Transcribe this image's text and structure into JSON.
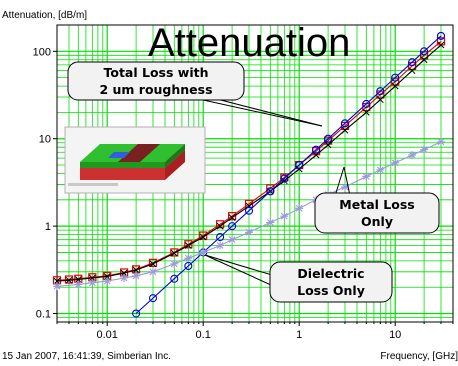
{
  "chart_data": {
    "type": "line",
    "title": "Attenuation",
    "ylabel": "Attenuation, [dB/m]",
    "xlabel": "Frequency, [GHz]",
    "footer": "15 Jan 2007, 16:41:39, Simberian Inc.",
    "x_scale": "log",
    "y_scale": "log",
    "xlim": [
      0.003,
      40
    ],
    "ylim": [
      0.08,
      200
    ],
    "x_ticks": [
      {
        "v": 0.01,
        "label": "0.01"
      },
      {
        "v": 0.1,
        "label": "0.1"
      },
      {
        "v": 1,
        "label": "1"
      },
      {
        "v": 10,
        "label": "10"
      }
    ],
    "y_ticks": [
      {
        "v": 0.1,
        "label": "0.1"
      },
      {
        "v": 1,
        "label": "1"
      },
      {
        "v": 10,
        "label": "10"
      },
      {
        "v": 100,
        "label": "100"
      }
    ],
    "grid": true,
    "colors": {
      "grid": "#00e000",
      "total": "#e00000",
      "dielectric": "#0000dd",
      "metal": "#9a9ad8",
      "black": "#000000"
    },
    "series": [
      {
        "key": "total",
        "marker": "square",
        "x": [
          0.003,
          0.004,
          0.005,
          0.007,
          0.01,
          0.015,
          0.02,
          0.03,
          0.05,
          0.07,
          0.1,
          0.15,
          0.2,
          0.3,
          0.5,
          0.7,
          1,
          1.5,
          2,
          3,
          5,
          7,
          10,
          15,
          20,
          30
        ],
        "y": [
          0.24,
          0.245,
          0.25,
          0.26,
          0.27,
          0.295,
          0.32,
          0.38,
          0.5,
          0.62,
          0.78,
          1.05,
          1.3,
          1.8,
          2.7,
          3.6,
          5.0,
          7.2,
          9.5,
          14,
          23,
          32,
          45,
          68,
          90,
          130
        ]
      },
      {
        "key": "fit",
        "marker": "x",
        "x": [
          0.003,
          0.004,
          0.005,
          0.007,
          0.01,
          0.015,
          0.02,
          0.03,
          0.05,
          0.07,
          0.1,
          0.15,
          0.2,
          0.3,
          0.5,
          0.7,
          1,
          1.5,
          2,
          3,
          5,
          7,
          10,
          15,
          20,
          30
        ],
        "y": [
          0.235,
          0.24,
          0.245,
          0.255,
          0.265,
          0.29,
          0.315,
          0.37,
          0.49,
          0.6,
          0.75,
          1.0,
          1.25,
          1.7,
          2.5,
          3.3,
          4.5,
          6.5,
          8.5,
          12.5,
          20,
          28,
          40,
          60,
          80,
          118
        ]
      },
      {
        "key": "dielectric",
        "marker": "circle",
        "x": [
          0.02,
          0.03,
          0.05,
          0.07,
          0.1,
          0.15,
          0.2,
          0.3,
          0.5,
          0.7,
          1,
          1.5,
          2,
          3,
          5,
          7,
          10,
          15,
          20,
          30
        ],
        "y": [
          0.1,
          0.15,
          0.25,
          0.35,
          0.5,
          0.75,
          1.0,
          1.5,
          2.5,
          3.5,
          5.0,
          7.5,
          10,
          15,
          25,
          35,
          50,
          75,
          100,
          150
        ]
      },
      {
        "key": "metal",
        "marker": "star",
        "x": [
          0.003,
          0.005,
          0.007,
          0.01,
          0.015,
          0.02,
          0.03,
          0.05,
          0.07,
          0.1,
          0.15,
          0.2,
          0.3,
          0.5,
          0.7,
          1,
          1.5,
          2,
          3,
          5,
          7,
          10,
          15,
          20,
          30
        ],
        "y": [
          0.205,
          0.215,
          0.225,
          0.235,
          0.255,
          0.27,
          0.3,
          0.37,
          0.43,
          0.5,
          0.6,
          0.7,
          0.85,
          1.1,
          1.3,
          1.6,
          2.0,
          2.3,
          2.8,
          3.7,
          4.4,
          5.3,
          6.5,
          7.5,
          9.2
        ]
      }
    ],
    "callouts": [
      {
        "lines": [
          "Total Loss with",
          "2 um roughness"
        ]
      },
      {
        "lines": [
          "Metal Loss",
          "Only"
        ]
      },
      {
        "lines": [
          "Dielectric",
          "Loss Only"
        ]
      }
    ]
  }
}
